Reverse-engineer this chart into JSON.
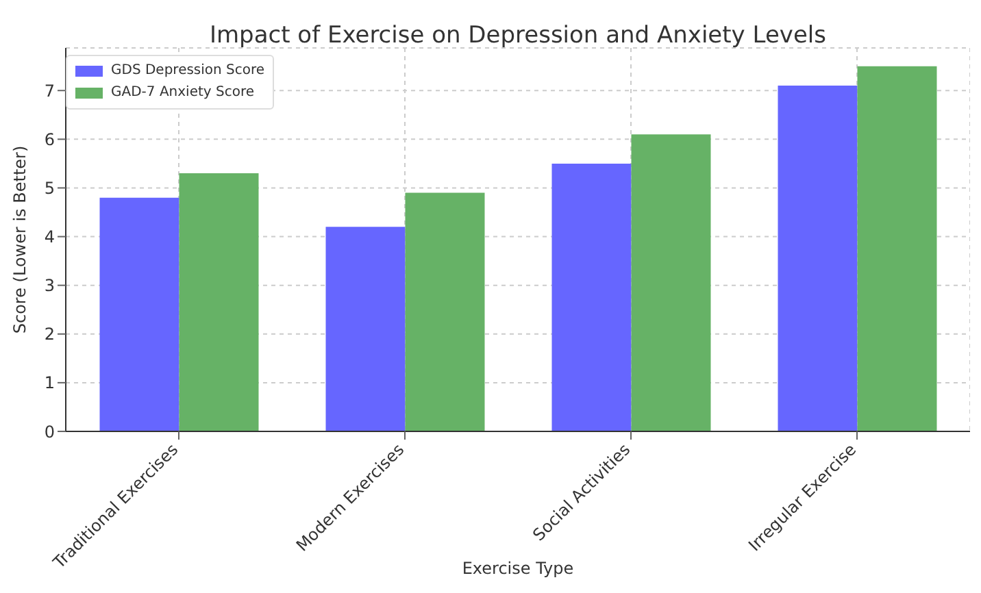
{
  "chart_data": {
    "type": "bar",
    "title": "Impact of Exercise on Depression and Anxiety Levels",
    "xlabel": "Exercise Type",
    "ylabel": "Score (Lower is Better)",
    "categories": [
      "Traditional Exercises",
      "Modern Exercises",
      "Social Activities",
      "Irregular Exercise"
    ],
    "series": [
      {
        "name": "GDS Depression Score",
        "color": "#6666ff",
        "values": [
          4.8,
          4.2,
          5.5,
          7.1
        ]
      },
      {
        "name": "GAD-7 Anxiety Score",
        "color": "#66b266",
        "values": [
          5.3,
          4.9,
          6.1,
          7.5
        ]
      }
    ],
    "ylim": [
      0,
      7.875
    ],
    "yticks": [
      0,
      1,
      2,
      3,
      4,
      5,
      6,
      7
    ],
    "grid": true,
    "legend": "top left"
  }
}
